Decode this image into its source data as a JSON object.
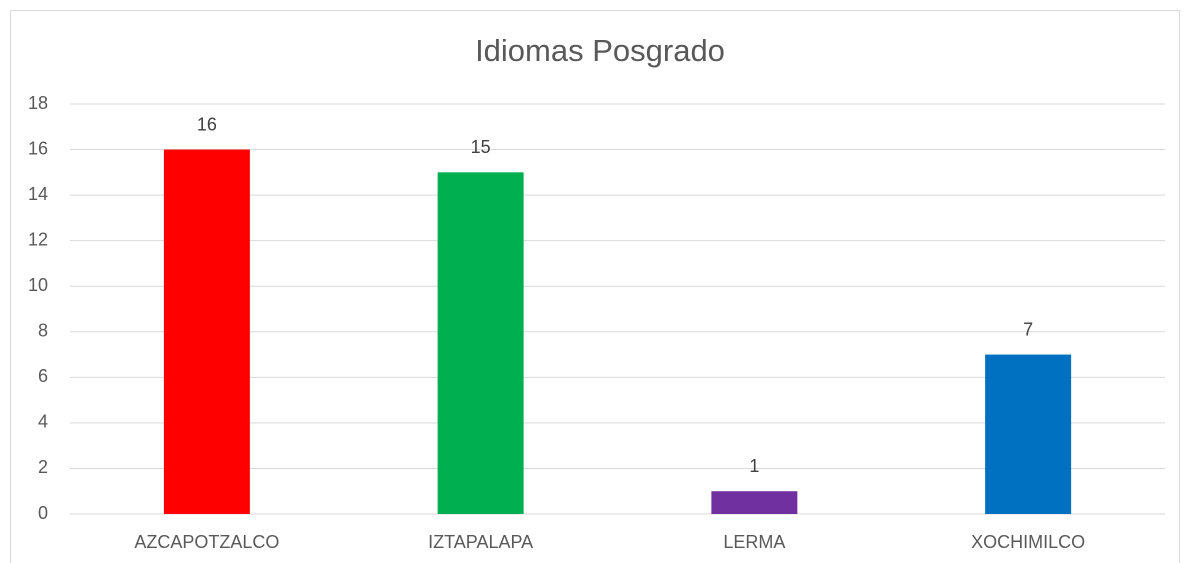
{
  "chart_data": {
    "type": "bar",
    "title": "Idiomas Posgrado",
    "categories": [
      "AZCAPOTZALCO",
      "IZTAPALAPA",
      "LERMA",
      "XOCHIMILCO"
    ],
    "values": [
      16,
      15,
      1,
      7
    ],
    "colors": [
      "#ff0000",
      "#00b050",
      "#7030a0",
      "#0070c0"
    ],
    "ylim": [
      0,
      18
    ],
    "yticks": [
      0,
      2,
      4,
      6,
      8,
      10,
      12,
      14,
      16,
      18
    ],
    "grid": true
  }
}
